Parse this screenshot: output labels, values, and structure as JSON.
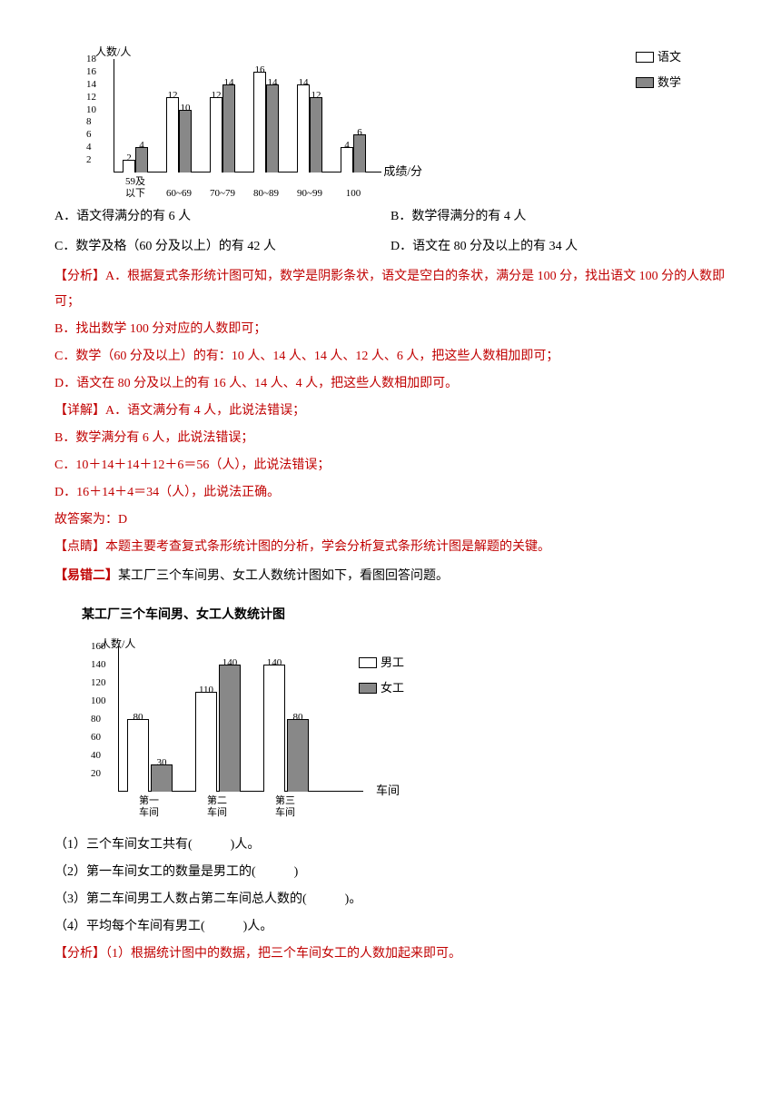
{
  "chart1": {
    "y_label": "人数/人",
    "x_label": "成绩/分",
    "legend": [
      "语文",
      "数学"
    ],
    "categories": [
      "59及\n以下",
      "60~69",
      "70~79",
      "80~89",
      "90~99",
      "100"
    ],
    "series1": [
      2,
      12,
      12,
      16,
      14,
      4
    ],
    "series2": [
      4,
      10,
      14,
      14,
      12,
      6
    ],
    "y_ticks": [
      2,
      4,
      6,
      8,
      10,
      12,
      14,
      16,
      18
    ],
    "y_max": 18,
    "series1_color": "#ffffff",
    "series2_color": "#888888"
  },
  "options": {
    "a": "A．语文得满分的有 6 人",
    "b": "B．数学得满分的有 4 人",
    "c": "C．数学及格（60 分及以上）的有 42 人",
    "d": "D．语文在 80 分及以上的有 34 人"
  },
  "analysis": {
    "label": "【分析】",
    "a": "A．根据复式条形统计图可知，数学是阴影条状，语文是空白的条状，满分是 100 分，找出语文 100 分的人数即可；",
    "b": "B．找出数学 100 分对应的人数即可；",
    "c": "C．数学（60 分及以上）的有：10 人、14 人、14 人、12 人、6 人，把这些人数相加即可；",
    "d": "D．语文在 80 分及以上的有 16 人、14 人、4 人，把这些人数相加即可。"
  },
  "detail": {
    "label": "【详解】",
    "a": "A．语文满分有 4 人，此说法错误；",
    "b": "B．数学满分有 6 人，此说法错误；",
    "c": "C．10＋14＋14＋12＋6＝56（人），此说法错误；",
    "d": "D．16＋14＋4＝34（人），此说法正确。",
    "answer_label": "故答案为：D"
  },
  "note": {
    "label": "【点睛】",
    "text": "本题主要考查复式条形统计图的分析，学会分析复式条形统计图是解题的关键。"
  },
  "err2": {
    "label": "【易错二】",
    "text": "某工厂三个车间男、女工人数统计图如下，看图回答问题。"
  },
  "chart2": {
    "title": "某工厂三个车间男、女工人数统计图",
    "y_label": "人数/人",
    "x_label": "车间",
    "legend": [
      "男工",
      "女工"
    ],
    "categories": [
      "第一\n车间",
      "第二\n车间",
      "第三\n车间"
    ],
    "series1": [
      80,
      110,
      140
    ],
    "series2": [
      30,
      140,
      80
    ],
    "y_ticks": [
      20,
      40,
      60,
      80,
      100,
      120,
      140,
      160
    ],
    "y_max": 160,
    "series1_color": "#ffffff",
    "series2_color": "#888888"
  },
  "questions": {
    "q1": "（1）三个车间女工共有(　　　)人。",
    "q2": "（2）第一车间女工的数量是男工的(　　　)",
    "q3": "（3）第二车间男工人数占第二车间总人数的(　　　)。",
    "q4": "（4）平均每个车间有男工(　　　)人。"
  },
  "analysis2": {
    "label": "【分析】",
    "text": "（1）根据统计图中的数据，把三个车间女工的人数加起来即可。"
  }
}
